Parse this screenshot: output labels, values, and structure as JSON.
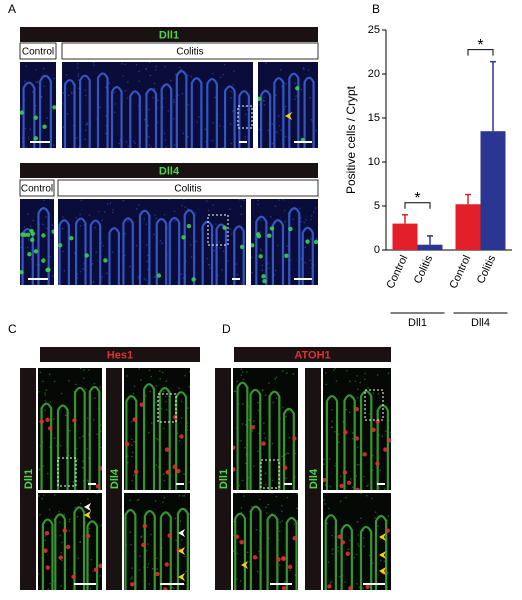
{
  "panel_labels": [
    "A",
    "B",
    "C",
    "D"
  ],
  "panel_a": {
    "dll1": {
      "header": "Dll1",
      "control": "Control",
      "colitis": "Colitis"
    },
    "dll4": {
      "header": "Dll4",
      "control": "Control",
      "colitis": "Colitis"
    }
  },
  "panel_c": {
    "header": "Hes1",
    "side_labels": [
      "Dll1",
      "Dll4"
    ]
  },
  "panel_d": {
    "header": "ATOH1",
    "side_labels": [
      "Dll1",
      "Dll4"
    ]
  },
  "chart_data": {
    "type": "bar",
    "y_label": "Positive cells / Crypt",
    "categories": [
      "Dll1",
      "Dll4"
    ],
    "series": [
      {
        "name": "Control",
        "color": "#e3202a",
        "values": [
          3.0,
          5.2
        ],
        "errors": [
          1.0,
          1.1
        ]
      },
      {
        "name": "Colitis",
        "color": "#2b3592",
        "values": [
          0.6,
          13.5
        ],
        "errors": [
          1.0,
          7.9
        ]
      }
    ],
    "ylim": [
      0,
      25
    ],
    "yticks": [
      0,
      5,
      10,
      15,
      20,
      25
    ],
    "annotations": [
      "*",
      "*"
    ]
  }
}
